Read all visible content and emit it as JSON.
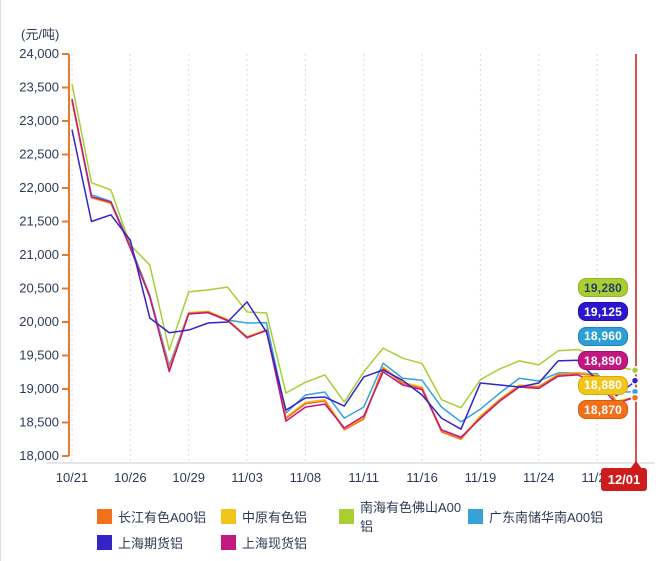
{
  "unit_label": "(元/吨)",
  "chart_data": {
    "type": "line",
    "title": "",
    "xlabel": "",
    "ylabel": "元/吨",
    "ylim": [
      18000,
      24000
    ],
    "grid": "vertical-dotted",
    "legend_position": "bottom",
    "y_ticks": [
      "24,000",
      "23,500",
      "23,000",
      "22,500",
      "22,000",
      "21,500",
      "21,000",
      "20,500",
      "20,000",
      "19,500",
      "19,000",
      "18,500",
      "18,000"
    ],
    "x": [
      "10/21",
      "10/22",
      "10/25",
      "10/26",
      "10/27",
      "10/28",
      "10/29",
      "11/01",
      "11/02",
      "11/03",
      "11/04",
      "11/05",
      "11/08",
      "11/09",
      "11/10",
      "11/11",
      "11/12",
      "11/15",
      "11/16",
      "11/17",
      "11/18",
      "11/19",
      "11/22",
      "11/23",
      "11/24",
      "11/25",
      "11/26",
      "11/29",
      "11/30",
      "12/01"
    ],
    "x_tick_indices": [
      0,
      3,
      6,
      9,
      12,
      15,
      18,
      21,
      24,
      27
    ],
    "x_tick_labels": [
      "10/21",
      "10/26",
      "10/29",
      "11/03",
      "11/08",
      "11/11",
      "11/16",
      "11/19",
      "11/24",
      "11/29"
    ],
    "highlight_x": {
      "label": "12/01",
      "index": 29,
      "color": "#ce1b1b"
    },
    "series": [
      {
        "name": "长江有色A00铝",
        "color": "#f3701b",
        "values": [
          23310,
          21860,
          21780,
          21120,
          20380,
          19300,
          20130,
          20150,
          20030,
          19760,
          19880,
          18560,
          18780,
          18820,
          18390,
          18550,
          19310,
          19085,
          19010,
          18360,
          18250,
          18580,
          18835,
          19045,
          19030,
          19210,
          19230,
          19195,
          18800,
          18870
        ],
        "end_label": {
          "text": "18,870",
          "bg": "#f3701b",
          "border": "#d95c05",
          "text_color": "#ffffff"
        }
      },
      {
        "name": "中原有色铝",
        "color": "#f2c51c",
        "values": [
          23300,
          21850,
          21770,
          21110,
          20370,
          19310,
          20140,
          20160,
          20040,
          19780,
          19890,
          18580,
          18800,
          18840,
          18410,
          18570,
          19330,
          19100,
          19030,
          18380,
          18270,
          18600,
          18850,
          19060,
          19040,
          19220,
          19240,
          19210,
          18820,
          18880
        ],
        "end_label": {
          "text": "18,880",
          "bg": "#f2c51c",
          "border": "#d9ab00",
          "text_color": "#ffffff"
        }
      },
      {
        "name": "南海有色佛山A00铝",
        "color": "#a8ce33",
        "values": [
          23550,
          22080,
          21970,
          21150,
          20850,
          19580,
          20450,
          20480,
          20520,
          20150,
          20135,
          18940,
          19100,
          19210,
          18805,
          19255,
          19610,
          19460,
          19380,
          18840,
          18720,
          19140,
          19300,
          19420,
          19360,
          19570,
          19590,
          19490,
          19330,
          19280
        ],
        "end_label": {
          "text": "19,280",
          "bg": "#a8ce33",
          "border": "#8fb521",
          "text_color": "#24406b"
        }
      },
      {
        "name": "广东南储华南A00铝",
        "color": "#35a2dc",
        "values": [
          23300,
          21900,
          21800,
          21140,
          20400,
          19350,
          20140,
          20150,
          20030,
          19985,
          19990,
          18640,
          18910,
          18955,
          18565,
          18730,
          19385,
          19160,
          19130,
          18730,
          18510,
          18700,
          18940,
          19160,
          19120,
          19240,
          19240,
          19225,
          18950,
          18960
        ],
        "end_label": {
          "text": "18,960",
          "bg": "#2e9ed6",
          "border": "#1f84b8",
          "text_color": "#ffffff"
        }
      },
      {
        "name": "上海期货铝",
        "color": "#3424c8",
        "values": [
          22870,
          21500,
          21600,
          21220,
          20060,
          19840,
          19880,
          19985,
          20000,
          20300,
          19850,
          18685,
          18865,
          18880,
          18745,
          19180,
          19285,
          19130,
          18910,
          18565,
          18400,
          19090,
          19060,
          19030,
          19090,
          19420,
          19430,
          19130,
          18900,
          19125
        ],
        "end_label": {
          "text": "19,125",
          "bg": "#2c17cd",
          "border": "#1e0da8",
          "text_color": "#ffffff"
        }
      },
      {
        "name": "上海现货铝",
        "color": "#c2187f",
        "values": [
          23330,
          21870,
          21790,
          21100,
          20375,
          19260,
          20120,
          20140,
          20020,
          19770,
          19870,
          18520,
          18730,
          18775,
          18420,
          18595,
          19255,
          19060,
          18990,
          18390,
          18280,
          18560,
          18820,
          19030,
          19010,
          19190,
          19210,
          19090,
          18780,
          18890
        ],
        "end_label": {
          "text": "18,890",
          "bg": "#c2187f",
          "border": "#a30c67",
          "text_color": "#ffffff"
        }
      }
    ],
    "value_label_order": [
      2,
      4,
      3,
      5,
      1,
      0
    ]
  },
  "colors": {
    "axis_orange": "#e87a2e",
    "grid": "#dadada",
    "base_line": "#cccccc",
    "text_navy": "#2d3a55",
    "highlight_red": "#ce1b1b"
  }
}
